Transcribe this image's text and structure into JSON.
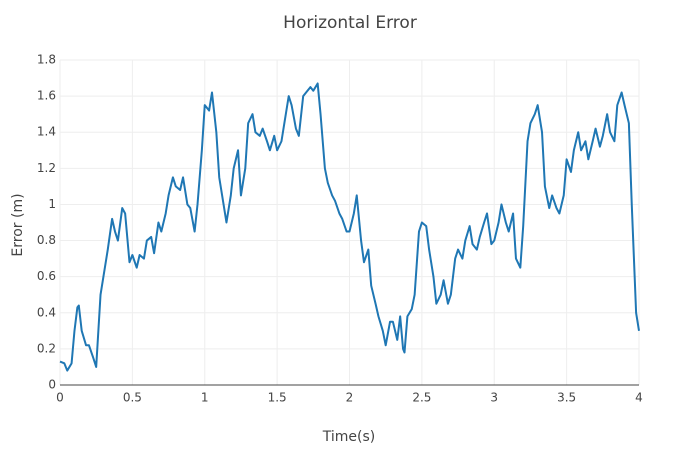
{
  "chart_data": {
    "type": "line",
    "title": "Horizontal Error",
    "x_label": "Time(s)",
    "y_label": "Error (m)",
    "x": [
      0,
      0.03,
      0.05,
      0.08,
      0.1,
      0.12,
      0.13,
      0.15,
      0.18,
      0.2,
      0.23,
      0.25,
      0.28,
      0.3,
      0.33,
      0.36,
      0.38,
      0.4,
      0.43,
      0.45,
      0.48,
      0.5,
      0.53,
      0.55,
      0.58,
      0.6,
      0.63,
      0.65,
      0.68,
      0.7,
      0.73,
      0.75,
      0.78,
      0.8,
      0.83,
      0.85,
      0.88,
      0.9,
      0.93,
      0.95,
      0.98,
      1.0,
      1.03,
      1.05,
      1.08,
      1.1,
      1.13,
      1.15,
      1.18,
      1.2,
      1.23,
      1.25,
      1.28,
      1.3,
      1.33,
      1.35,
      1.38,
      1.4,
      1.43,
      1.45,
      1.48,
      1.5,
      1.53,
      1.55,
      1.58,
      1.6,
      1.63,
      1.65,
      1.68,
      1.7,
      1.73,
      1.75,
      1.78,
      1.8,
      1.83,
      1.85,
      1.88,
      1.9,
      1.93,
      1.95,
      1.98,
      2.0,
      2.03,
      2.05,
      2.08,
      2.1,
      2.13,
      2.15,
      2.18,
      2.2,
      2.23,
      2.25,
      2.28,
      2.3,
      2.33,
      2.35,
      2.37,
      2.38,
      2.4,
      2.43,
      2.45,
      2.48,
      2.5,
      2.53,
      2.55,
      2.58,
      2.6,
      2.63,
      2.65,
      2.68,
      2.7,
      2.73,
      2.75,
      2.78,
      2.8,
      2.83,
      2.85,
      2.88,
      2.9,
      2.93,
      2.95,
      2.98,
      3.0,
      3.03,
      3.05,
      3.08,
      3.1,
      3.13,
      3.15,
      3.18,
      3.2,
      3.23,
      3.25,
      3.28,
      3.3,
      3.33,
      3.35,
      3.38,
      3.4,
      3.43,
      3.45,
      3.48,
      3.5,
      3.53,
      3.55,
      3.58,
      3.6,
      3.63,
      3.65,
      3.68,
      3.7,
      3.73,
      3.75,
      3.78,
      3.8,
      3.83,
      3.85,
      3.88,
      3.9,
      3.93,
      3.95,
      3.97,
      3.98,
      4.0
    ],
    "series": [
      {
        "name": "Horizontal Error",
        "color": "#1f77b4",
        "values": [
          0.13,
          0.12,
          0.08,
          0.12,
          0.3,
          0.43,
          0.44,
          0.3,
          0.22,
          0.22,
          0.15,
          0.1,
          0.5,
          0.6,
          0.75,
          0.92,
          0.85,
          0.8,
          0.98,
          0.95,
          0.68,
          0.72,
          0.65,
          0.72,
          0.7,
          0.8,
          0.82,
          0.73,
          0.9,
          0.85,
          0.95,
          1.05,
          1.15,
          1.1,
          1.08,
          1.15,
          1.0,
          0.98,
          0.85,
          1.0,
          1.3,
          1.55,
          1.52,
          1.62,
          1.4,
          1.15,
          1.0,
          0.9,
          1.05,
          1.2,
          1.3,
          1.05,
          1.2,
          1.45,
          1.5,
          1.4,
          1.38,
          1.42,
          1.35,
          1.3,
          1.38,
          1.3,
          1.35,
          1.45,
          1.6,
          1.55,
          1.42,
          1.38,
          1.6,
          1.62,
          1.65,
          1.63,
          1.67,
          1.5,
          1.2,
          1.12,
          1.05,
          1.02,
          0.95,
          0.92,
          0.85,
          0.85,
          0.95,
          1.05,
          0.8,
          0.68,
          0.75,
          0.55,
          0.45,
          0.38,
          0.3,
          0.22,
          0.35,
          0.35,
          0.25,
          0.38,
          0.2,
          0.18,
          0.38,
          0.42,
          0.5,
          0.85,
          0.9,
          0.88,
          0.75,
          0.6,
          0.45,
          0.5,
          0.58,
          0.45,
          0.5,
          0.7,
          0.75,
          0.7,
          0.8,
          0.88,
          0.78,
          0.75,
          0.82,
          0.9,
          0.95,
          0.78,
          0.8,
          0.9,
          1.0,
          0.9,
          0.85,
          0.95,
          0.7,
          0.65,
          0.88,
          1.35,
          1.45,
          1.5,
          1.55,
          1.4,
          1.1,
          0.98,
          1.05,
          0.98,
          0.95,
          1.05,
          1.25,
          1.18,
          1.3,
          1.4,
          1.3,
          1.35,
          1.25,
          1.35,
          1.42,
          1.32,
          1.38,
          1.5,
          1.4,
          1.35,
          1.55,
          1.62,
          1.55,
          1.45,
          1.0,
          0.6,
          0.4,
          0.3
        ]
      }
    ],
    "xlim": [
      0,
      4
    ],
    "xticks": [
      0,
      0.5,
      1,
      1.5,
      2,
      2.5,
      3,
      3.5,
      4
    ],
    "ylim": [
      0,
      1.8
    ],
    "yticks": [
      0,
      0.2,
      0.4,
      0.6,
      0.8,
      1,
      1.2,
      1.4,
      1.6,
      1.8
    ],
    "grid": true
  }
}
